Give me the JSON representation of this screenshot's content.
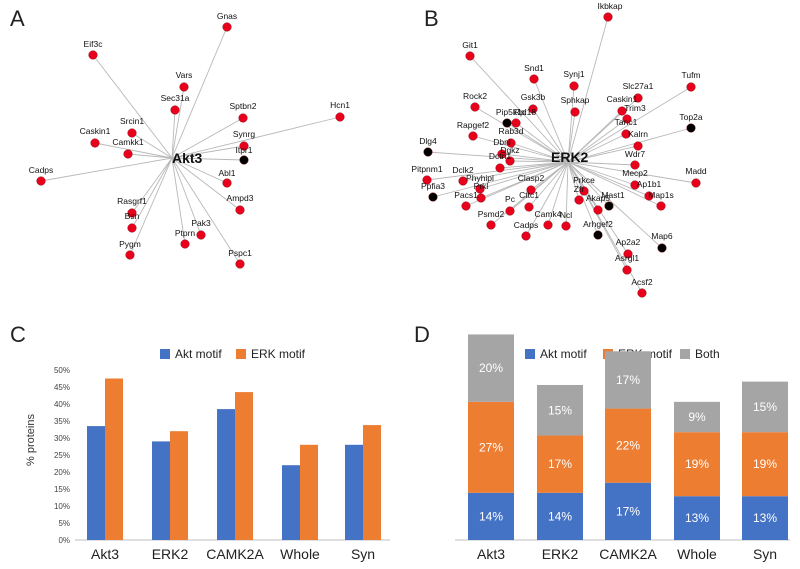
{
  "panels": {
    "a": "A",
    "b": "B",
    "c": "C",
    "d": "D"
  },
  "colors": {
    "akt": "#4472C4",
    "erk": "#ED7D31",
    "both": "#A5A5A5",
    "node_red": "#E8001C",
    "node_black": "#000000",
    "edge": "#B8B8B8"
  },
  "network_a": {
    "hub": "Akt3",
    "nodes": [
      {
        "label": "Gnas",
        "color": "red"
      },
      {
        "label": "Eif3c",
        "color": "red"
      },
      {
        "label": "Vars",
        "color": "red"
      },
      {
        "label": "Sec31a",
        "color": "red"
      },
      {
        "label": "Sptbn2",
        "color": "red"
      },
      {
        "label": "Hcn1",
        "color": "red"
      },
      {
        "label": "Srcin1",
        "color": "red"
      },
      {
        "label": "Synrg",
        "color": "red"
      },
      {
        "label": "Caskin1",
        "color": "red"
      },
      {
        "label": "Camkk1",
        "color": "red"
      },
      {
        "label": "Itpr1",
        "color": "black"
      },
      {
        "label": "Cadps",
        "color": "red"
      },
      {
        "label": "Abl1",
        "color": "red"
      },
      {
        "label": "Rasgrf1",
        "color": "red"
      },
      {
        "label": "Ampd3",
        "color": "red"
      },
      {
        "label": "Bsn",
        "color": "red"
      },
      {
        "label": "Pak3",
        "color": "red"
      },
      {
        "label": "Pygm",
        "color": "red"
      },
      {
        "label": "Ptprn",
        "color": "red"
      },
      {
        "label": "Pspc1",
        "color": "red"
      }
    ]
  },
  "network_b": {
    "hub": "ERK2",
    "nodes": [
      {
        "label": "Ikbkap",
        "color": "red"
      },
      {
        "label": "Git1",
        "color": "red"
      },
      {
        "label": "Snd1",
        "color": "red"
      },
      {
        "label": "Synj1",
        "color": "red"
      },
      {
        "label": "Slc27a1",
        "color": "red"
      },
      {
        "label": "Tufm",
        "color": "red"
      },
      {
        "label": "Rock2",
        "color": "red"
      },
      {
        "label": "Pip5k1c",
        "color": "black"
      },
      {
        "label": "Gsk3b",
        "color": "red"
      },
      {
        "label": "Sphkap",
        "color": "red"
      },
      {
        "label": "Caskin1",
        "color": "red"
      },
      {
        "label": "Rpl18",
        "color": "red"
      },
      {
        "label": "Trim3",
        "color": "red"
      },
      {
        "label": "Top2a",
        "color": "black"
      },
      {
        "label": "Tanc1",
        "color": "red"
      },
      {
        "label": "Rapgef2",
        "color": "red"
      },
      {
        "label": "Rab3d",
        "color": "red"
      },
      {
        "label": "Kalrn",
        "color": "red"
      },
      {
        "label": "Dlg4",
        "color": "black"
      },
      {
        "label": "Dbnl",
        "color": "red"
      },
      {
        "label": "Dgkz",
        "color": "red"
      },
      {
        "label": "Wdr7",
        "color": "red"
      },
      {
        "label": "Pitpnm1",
        "color": "red"
      },
      {
        "label": "Dctn1",
        "color": "red"
      },
      {
        "label": "Madd",
        "color": "red"
      },
      {
        "label": "Dclk2",
        "color": "red"
      },
      {
        "label": "Phyhipl",
        "color": "red"
      },
      {
        "label": "Mecp2",
        "color": "red"
      },
      {
        "label": "Ppfia3",
        "color": "black"
      },
      {
        "label": "Prkl",
        "color": "red"
      },
      {
        "label": "Clasp2",
        "color": "red"
      },
      {
        "label": "Prkce",
        "color": "red"
      },
      {
        "label": "Mast1",
        "color": "black"
      },
      {
        "label": "Ap1b1",
        "color": "red"
      },
      {
        "label": "Pacs1",
        "color": "red"
      },
      {
        "label": "Cttc1",
        "color": "red"
      },
      {
        "label": "Zfr",
        "color": "red"
      },
      {
        "label": "Map1s",
        "color": "red"
      },
      {
        "label": "Pc",
        "color": "red"
      },
      {
        "label": "Akap5",
        "color": "red"
      },
      {
        "label": "Psmd2",
        "color": "red"
      },
      {
        "label": "Camk4",
        "color": "red"
      },
      {
        "label": "Cadps",
        "color": "red"
      },
      {
        "label": "Ncl",
        "color": "red"
      },
      {
        "label": "Arhgef2",
        "color": "black"
      },
      {
        "label": "Map6",
        "color": "black"
      },
      {
        "label": "Ap2a2",
        "color": "red"
      },
      {
        "label": "Asrgl1",
        "color": "red"
      },
      {
        "label": "Acsf2",
        "color": "red"
      }
    ]
  },
  "chart_data": [
    {
      "type": "bar",
      "categories": [
        "Akt3",
        "ERK2",
        "CAMK2A",
        "Whole",
        "Syn"
      ],
      "series": [
        {
          "name": "Akt motif",
          "values": [
            33.5,
            29,
            38.5,
            22,
            28
          ]
        },
        {
          "name": "ERK motif",
          "values": [
            47.5,
            32,
            43.5,
            28,
            33.8
          ]
        }
      ],
      "ylabel": "% proteins",
      "ylim": [
        0,
        50
      ],
      "yticks": [
        "0%",
        "5%",
        "10%",
        "15%",
        "20%",
        "25%",
        "30%",
        "35%",
        "40%",
        "45%",
        "50%"
      ],
      "legend": "top"
    },
    {
      "type": "bar",
      "stacked": true,
      "categories": [
        "Akt3",
        "ERK2",
        "CAMK2A",
        "Whole",
        "Syn"
      ],
      "series": [
        {
          "name": "Akt motif",
          "values": [
            14,
            14,
            17,
            13,
            13
          ],
          "labels": [
            "14%",
            "14%",
            "17%",
            "13%",
            "13%"
          ]
        },
        {
          "name": "ERK motif",
          "values": [
            27,
            17,
            22,
            19,
            19
          ],
          "labels": [
            "27%",
            "17%",
            "22%",
            "19%",
            "19%"
          ]
        },
        {
          "name": "Both",
          "values": [
            20,
            15,
            17,
            9,
            15
          ],
          "labels": [
            "20%",
            "15%",
            "17%",
            "9%",
            "15%"
          ]
        }
      ],
      "legend": "top"
    }
  ]
}
